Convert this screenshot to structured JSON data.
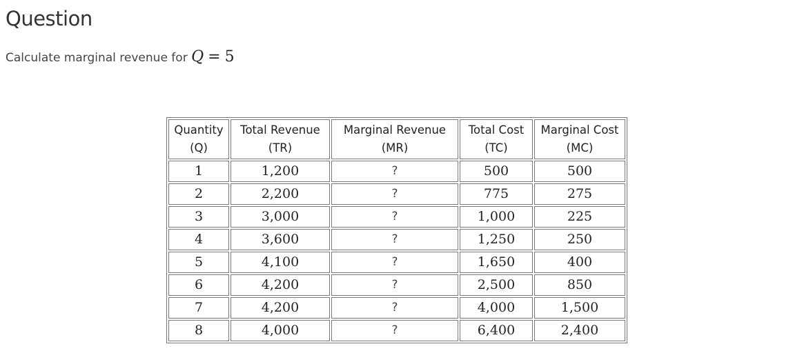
{
  "question": {
    "heading": "Question",
    "prompt_text": "Calculate marginal revenue for",
    "math_var": "Q",
    "math_op": "=",
    "math_value": "5"
  },
  "table": {
    "headers": [
      {
        "line1": "Quantity",
        "line2": "(Q)"
      },
      {
        "line1": "Total Revenue",
        "line2": "(TR)"
      },
      {
        "line1": "Marginal Revenue",
        "line2": "(MR)"
      },
      {
        "line1": "Total Cost",
        "line2": "(TC)"
      },
      {
        "line1": "Marginal Cost",
        "line2": "(MC)"
      }
    ],
    "rows": [
      {
        "q": "1",
        "tr": "1,200",
        "mr": "?",
        "tc": "500",
        "mc": "500"
      },
      {
        "q": "2",
        "tr": "2,200",
        "mr": "?",
        "tc": "775",
        "mc": "275"
      },
      {
        "q": "3",
        "tr": "3,000",
        "mr": "?",
        "tc": "1,000",
        "mc": "225"
      },
      {
        "q": "4",
        "tr": "3,600",
        "mr": "?",
        "tc": "1,250",
        "mc": "250"
      },
      {
        "q": "5",
        "tr": "4,100",
        "mr": "?",
        "tc": "1,650",
        "mc": "400"
      },
      {
        "q": "6",
        "tr": "4,200",
        "mr": "?",
        "tc": "2,500",
        "mc": "850"
      },
      {
        "q": "7",
        "tr": "4,200",
        "mr": "?",
        "tc": "4,000",
        "mc": "1,500"
      },
      {
        "q": "8",
        "tr": "4,000",
        "mr": "?",
        "tc": "6,400",
        "mc": "2,400"
      }
    ]
  }
}
